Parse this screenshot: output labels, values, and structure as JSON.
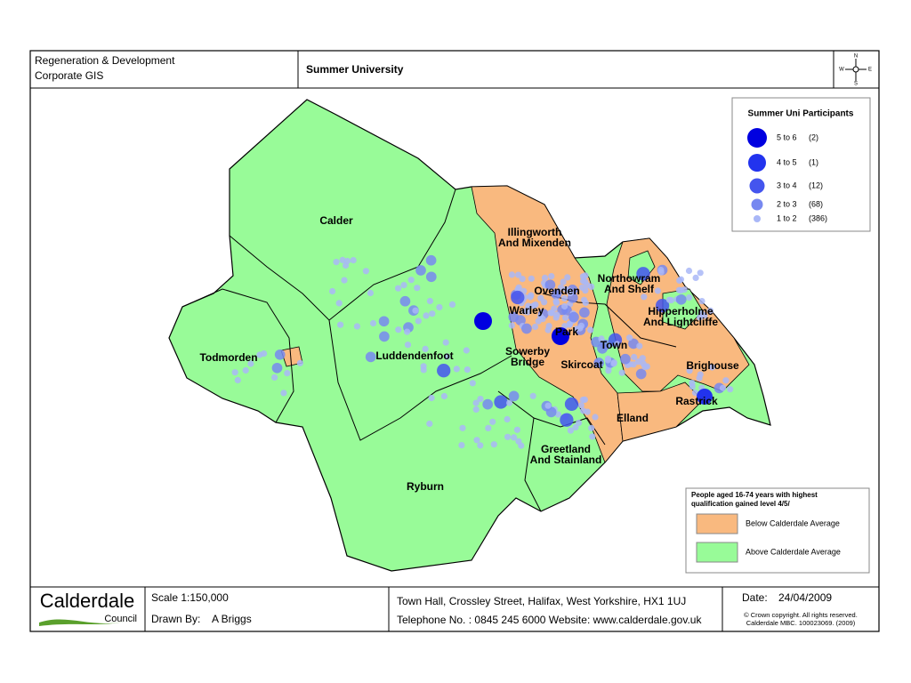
{
  "header": {
    "org": [
      "Regeneration & Development",
      "Corporate GIS"
    ],
    "title": "Summer University",
    "compass": [
      "N",
      "W",
      "E",
      "S"
    ]
  },
  "legend": {
    "title": "Summer Uni Participants",
    "items": [
      {
        "range": "5 to 6",
        "count": "(2)"
      },
      {
        "range": "4 to 5",
        "count": "(1)"
      },
      {
        "range": "3 to 4",
        "count": "(12)"
      },
      {
        "range": "2 to 3",
        "count": "(68)"
      },
      {
        "range": "1 to 2",
        "count": "(386)"
      }
    ]
  },
  "wards": [
    {
      "lines": [
        "Calder"
      ]
    },
    {
      "lines": [
        "Todmorden"
      ]
    },
    {
      "lines": [
        "Luddendenfoot"
      ]
    },
    {
      "lines": [
        "Ryburn"
      ]
    },
    {
      "lines": [
        "Illingworth",
        "And Mixenden"
      ]
    },
    {
      "lines": [
        "Ovenden"
      ]
    },
    {
      "lines": [
        "Warley"
      ]
    },
    {
      "lines": [
        "Park"
      ]
    },
    {
      "lines": [
        "Sowerby",
        "Bridge"
      ]
    },
    {
      "lines": [
        "Town"
      ]
    },
    {
      "lines": [
        "Skircoat"
      ]
    },
    {
      "lines": [
        "Northowram",
        "And Shelf"
      ]
    },
    {
      "lines": [
        "Hipperholme",
        "And Lightcliffe"
      ]
    },
    {
      "lines": [
        "Brighouse"
      ]
    },
    {
      "lines": [
        "Rastrick"
      ]
    },
    {
      "lines": [
        "Elland"
      ]
    },
    {
      "lines": [
        "Greetland",
        "And Stainland"
      ]
    }
  ],
  "key": {
    "title": [
      "People aged 16-74 years with highest",
      "qualification gained level 4/5/"
    ],
    "items": [
      "Below Calderdale Average",
      "Above Calderdale Average"
    ]
  },
  "footer": {
    "logo": [
      "Calderdale",
      "Council"
    ],
    "scale": "Scale 1:150,000",
    "drawn_by_label": "Drawn By:",
    "drawn_by": "A Briggs",
    "address": "Town Hall, Crossley Street, Halifax, West Yorkshire, HX1 1UJ",
    "phone": "Telephone No. : 0845 245 6000 Website: www.calderdale.gov.uk",
    "date_label": "Date:",
    "date": "24/04/2009",
    "copyright": [
      "© Crown copyright. All rights reserved.",
      "Calderdale MBC. 100023069. (2009)"
    ]
  }
}
